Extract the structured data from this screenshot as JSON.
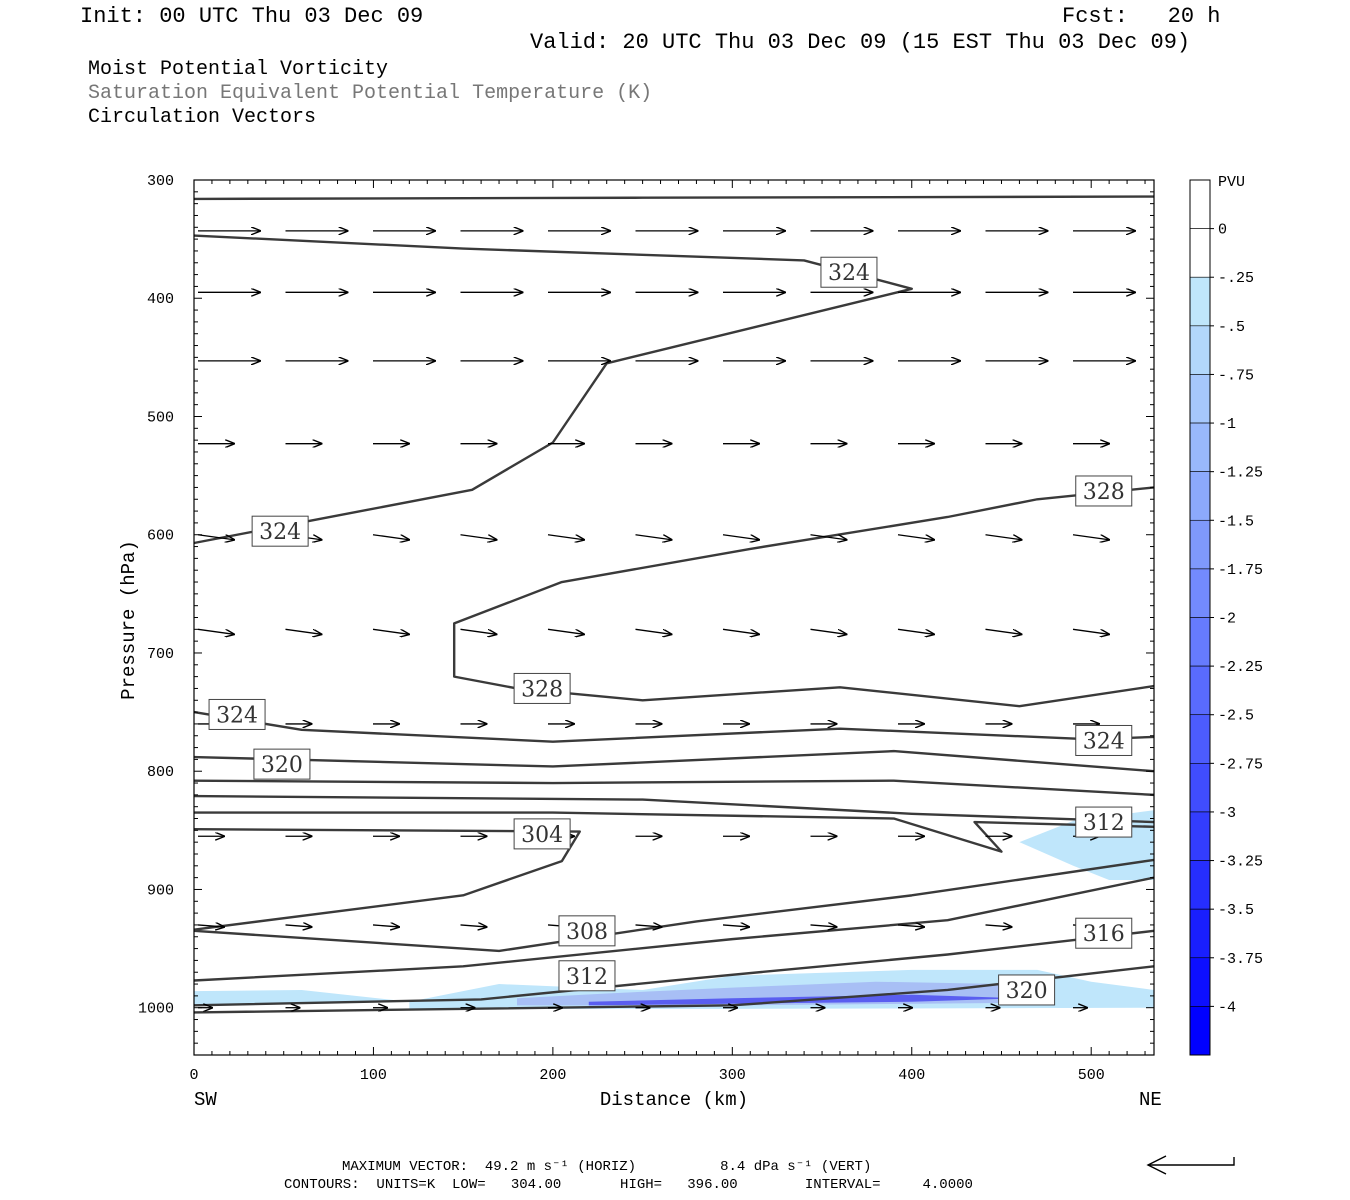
{
  "header": {
    "init": "Init: 00 UTC Thu 03 Dec 09",
    "fcst": "Fcst:   20 h",
    "valid": "Valid: 20 UTC Thu 03 Dec 09 (15 EST Thu 03 Dec 09)"
  },
  "fields": {
    "f1": "Moist Potential Vorticity",
    "f2": "Saturation Equivalent Potential Temperature (K)",
    "f3": "Circulation Vectors"
  },
  "footer": {
    "max_vector": "MAXIMUM VECTOR:  49.2 m s⁻¹ (HORIZ)          8.4 dPa s⁻¹ (VERT)",
    "contours": "CONTOURS:  UNITS=K  LOW=   304.00       HIGH=   396.00        INTERVAL=     4.0000"
  },
  "colors": {
    "contour": "#3a3a3a",
    "pv_light": "#bfe6fb",
    "pv_mid": "#a8bff5",
    "pv_dark": "#5a5ef0"
  },
  "chart_data": {
    "type": "cross-section",
    "xlabel": "Distance (km)",
    "ylabel": "Pressure (hPa)",
    "x_ends": [
      "SW",
      "NE"
    ],
    "xlim": [
      0,
      535
    ],
    "ylim": [
      300,
      1040
    ],
    "xticks": [
      0,
      100,
      200,
      300,
      400,
      500
    ],
    "yticks": [
      300,
      400,
      500,
      600,
      700,
      800,
      900,
      1000
    ],
    "colorbar": {
      "title": "PVU",
      "labels": [
        "0",
        "-.25",
        "-.5",
        "-.75",
        "-1",
        "-1.25",
        "-1.5",
        "-1.75",
        "-2",
        "-2.25",
        "-2.5",
        "-2.75",
        "-3",
        "-3.25",
        "-3.5",
        "-3.75",
        "-4"
      ]
    },
    "contour_labels": [
      {
        "text": "324",
        "x": 365,
        "p": 378
      },
      {
        "text": "324",
        "x": 48,
        "p": 597
      },
      {
        "text": "328",
        "x": 507,
        "p": 563
      },
      {
        "text": "328",
        "x": 194,
        "p": 730
      },
      {
        "text": "324",
        "x": 24,
        "p": 752
      },
      {
        "text": "324",
        "x": 507,
        "p": 774
      },
      {
        "text": "320",
        "x": 49,
        "p": 794
      },
      {
        "text": "304",
        "x": 194,
        "p": 853
      },
      {
        "text": "312",
        "x": 507,
        "p": 843
      },
      {
        "text": "308",
        "x": 219,
        "p": 935
      },
      {
        "text": "316",
        "x": 507,
        "p": 937
      },
      {
        "text": "312",
        "x": 219,
        "p": 973
      },
      {
        "text": "320",
        "x": 464,
        "p": 985
      }
    ],
    "contours": [
      {
        "level": 324,
        "points": [
          [
            0,
            347
          ],
          [
            150,
            358
          ],
          [
            340,
            368
          ],
          [
            400,
            392
          ],
          [
            230,
            455
          ],
          [
            200,
            522
          ],
          [
            155,
            562
          ],
          [
            0,
            607
          ]
        ]
      },
      {
        "level": 324,
        "points": [
          [
            0,
            316
          ],
          [
            250,
            315
          ],
          [
            535,
            314
          ]
        ]
      },
      {
        "level": 328,
        "points": [
          [
            535,
            560
          ],
          [
            470,
            570
          ],
          [
            420,
            585
          ],
          [
            310,
            612
          ],
          [
            205,
            640
          ],
          [
            145,
            675
          ],
          [
            145,
            720
          ],
          [
            180,
            730
          ],
          [
            250,
            740
          ],
          [
            360,
            729
          ],
          [
            460,
            745
          ],
          [
            535,
            728
          ]
        ]
      },
      {
        "level": 324,
        "points": [
          [
            0,
            750
          ],
          [
            60,
            765
          ],
          [
            200,
            775
          ],
          [
            360,
            764
          ],
          [
            500,
            773
          ],
          [
            535,
            771
          ]
        ]
      },
      {
        "level": 320,
        "points": [
          [
            0,
            788
          ],
          [
            200,
            796
          ],
          [
            390,
            783
          ],
          [
            535,
            800
          ]
        ]
      },
      {
        "level": 316,
        "points": [
          [
            0,
            808
          ],
          [
            200,
            810
          ],
          [
            390,
            808
          ],
          [
            535,
            820
          ]
        ]
      },
      {
        "level": 316,
        "points": [
          [
            0,
            821
          ],
          [
            250,
            824
          ],
          [
            400,
            836
          ],
          [
            535,
            843
          ]
        ]
      },
      {
        "level": 312,
        "points": [
          [
            0,
            835
          ],
          [
            200,
            835
          ],
          [
            390,
            840
          ],
          [
            450,
            868
          ],
          [
            435,
            843
          ],
          [
            535,
            847
          ]
        ]
      },
      {
        "level": 304,
        "points": [
          [
            0,
            849
          ],
          [
            215,
            851
          ],
          [
            205,
            876
          ],
          [
            150,
            905
          ],
          [
            0,
            934
          ]
        ]
      },
      {
        "level": 308,
        "points": [
          [
            0,
            935
          ],
          [
            170,
            952
          ],
          [
            280,
            927
          ],
          [
            400,
            905
          ],
          [
            535,
            875
          ]
        ]
      },
      {
        "level": 312,
        "points": [
          [
            0,
            977
          ],
          [
            150,
            965
          ],
          [
            300,
            942
          ],
          [
            420,
            926
          ],
          [
            535,
            890
          ]
        ]
      },
      {
        "level": 316,
        "points": [
          [
            0,
            998
          ],
          [
            160,
            993
          ],
          [
            280,
            975
          ],
          [
            420,
            955
          ],
          [
            535,
            935
          ]
        ]
      },
      {
        "level": 320,
        "points": [
          [
            0,
            1004
          ],
          [
            300,
            998
          ],
          [
            420,
            985
          ],
          [
            535,
            965
          ]
        ]
      }
    ],
    "vector_rows_hpa": [
      343,
      395,
      453,
      523,
      600,
      680,
      760,
      855,
      930,
      1000
    ]
  }
}
